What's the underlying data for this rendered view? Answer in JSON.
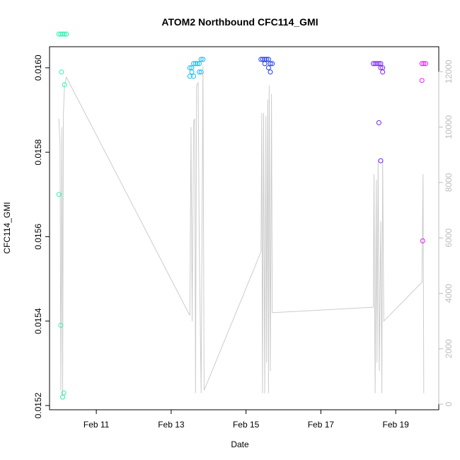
{
  "chart_data": {
    "type": "scatter",
    "title": "ATOM2 Northbound CFC114_GMI",
    "xlabel": "Date",
    "ylabel": "CFC114_GMI",
    "x_ticks": [
      "Feb 11",
      "Feb 13",
      "Feb 15",
      "Feb 17",
      "Feb 19"
    ],
    "x_tick_days": [
      11,
      13,
      15,
      17,
      19
    ],
    "xlim_days": [
      9.75,
      20.15
    ],
    "y_ticks": [
      "0.0152",
      "0.0154",
      "0.0156",
      "0.0158",
      "0.0160"
    ],
    "y_tick_values": [
      0.0152,
      0.0154,
      0.0156,
      0.0158,
      0.016
    ],
    "ylim": [
      0.01519,
      0.01605
    ],
    "y2_ticks": [
      "0",
      "2000",
      "4000",
      "6000",
      "8000",
      "10000",
      "12000"
    ],
    "y2_tick_values": [
      0,
      2000,
      4000,
      6000,
      8000,
      10000,
      12000
    ],
    "y2lim": [
      -200,
      12900
    ],
    "y2_color": "#bdbdbd",
    "series": [
      {
        "color": "#2ef2b0",
        "points": [
          [
            10.0,
            0.01608
          ],
          [
            10.05,
            0.01608
          ],
          [
            10.1,
            0.01608
          ],
          [
            10.15,
            0.01608
          ],
          [
            10.2,
            0.01608
          ],
          [
            10.07,
            0.01599
          ],
          [
            10.0,
            0.0157
          ],
          [
            10.15,
            0.01596
          ],
          [
            10.05,
            0.01539
          ],
          [
            10.13,
            0.01523
          ],
          [
            10.1,
            0.01522
          ]
        ]
      },
      {
        "color": "#19b8f0",
        "points": [
          [
            13.5,
            0.016
          ],
          [
            13.55,
            0.016
          ],
          [
            13.6,
            0.01601
          ],
          [
            13.65,
            0.01601
          ],
          [
            13.7,
            0.01601
          ],
          [
            13.75,
            0.01601
          ],
          [
            13.8,
            0.01602
          ],
          [
            13.85,
            0.01602
          ],
          [
            13.55,
            0.01599
          ],
          [
            13.5,
            0.01598
          ],
          [
            13.6,
            0.01598
          ],
          [
            13.75,
            0.01599
          ],
          [
            13.8,
            0.01599
          ]
        ]
      },
      {
        "color": "#1a3cf5",
        "points": [
          [
            15.4,
            0.01602
          ],
          [
            15.45,
            0.01602
          ],
          [
            15.5,
            0.01602
          ],
          [
            15.55,
            0.01602
          ],
          [
            15.6,
            0.01602
          ],
          [
            15.65,
            0.01601
          ],
          [
            15.7,
            0.01601
          ],
          [
            15.5,
            0.01601
          ],
          [
            15.6,
            0.016
          ],
          [
            15.65,
            0.01599
          ]
        ]
      },
      {
        "color": "#7b1ef2",
        "points": [
          [
            18.4,
            0.01601
          ],
          [
            18.45,
            0.01601
          ],
          [
            18.5,
            0.01601
          ],
          [
            18.55,
            0.01601
          ],
          [
            18.6,
            0.01601
          ],
          [
            18.65,
            0.016
          ],
          [
            18.6,
            0.016
          ],
          [
            18.65,
            0.01599
          ],
          [
            18.55,
            0.01587
          ],
          [
            18.6,
            0.01578
          ]
        ]
      },
      {
        "color": "#e31ef5",
        "points": [
          [
            19.7,
            0.01601
          ],
          [
            19.75,
            0.01601
          ],
          [
            19.8,
            0.01601
          ],
          [
            19.7,
            0.01597
          ],
          [
            19.72,
            0.01559
          ]
        ]
      }
    ],
    "y2_line": {
      "color": "#cccccc",
      "points": [
        [
          10.0,
          10300
        ],
        [
          10.03,
          9500
        ],
        [
          10.05,
          500
        ],
        [
          10.08,
          10000
        ],
        [
          10.1,
          300
        ],
        [
          10.12,
          10500
        ],
        [
          10.15,
          11500
        ],
        [
          10.2,
          11800
        ],
        [
          13.5,
          3200
        ],
        [
          13.53,
          10000
        ],
        [
          13.56,
          3000
        ],
        [
          13.6,
          10200
        ],
        [
          13.63,
          10300
        ],
        [
          13.65,
          400
        ],
        [
          13.68,
          11500
        ],
        [
          13.72,
          11600
        ],
        [
          13.75,
          6000
        ],
        [
          13.8,
          400
        ],
        [
          13.85,
          12200
        ],
        [
          13.88,
          500
        ],
        [
          15.4,
          5500
        ],
        [
          15.42,
          10500
        ],
        [
          15.44,
          400
        ],
        [
          15.47,
          10500
        ],
        [
          15.5,
          400
        ],
        [
          15.53,
          10400
        ],
        [
          15.55,
          1500
        ],
        [
          15.58,
          11000
        ],
        [
          15.6,
          400
        ],
        [
          15.62,
          11500
        ],
        [
          15.65,
          1200
        ],
        [
          15.68,
          11200
        ],
        [
          15.7,
          3300
        ],
        [
          18.4,
          3500
        ],
        [
          18.42,
          8300
        ],
        [
          18.45,
          400
        ],
        [
          18.48,
          8100
        ],
        [
          18.5,
          1500
        ],
        [
          18.53,
          8800
        ],
        [
          18.56,
          1200
        ],
        [
          18.6,
          6600
        ],
        [
          18.63,
          400
        ],
        [
          18.65,
          8800
        ],
        [
          18.68,
          3000
        ],
        [
          19.7,
          4400
        ],
        [
          19.73,
          8300
        ],
        [
          19.75,
          400
        ]
      ]
    }
  }
}
